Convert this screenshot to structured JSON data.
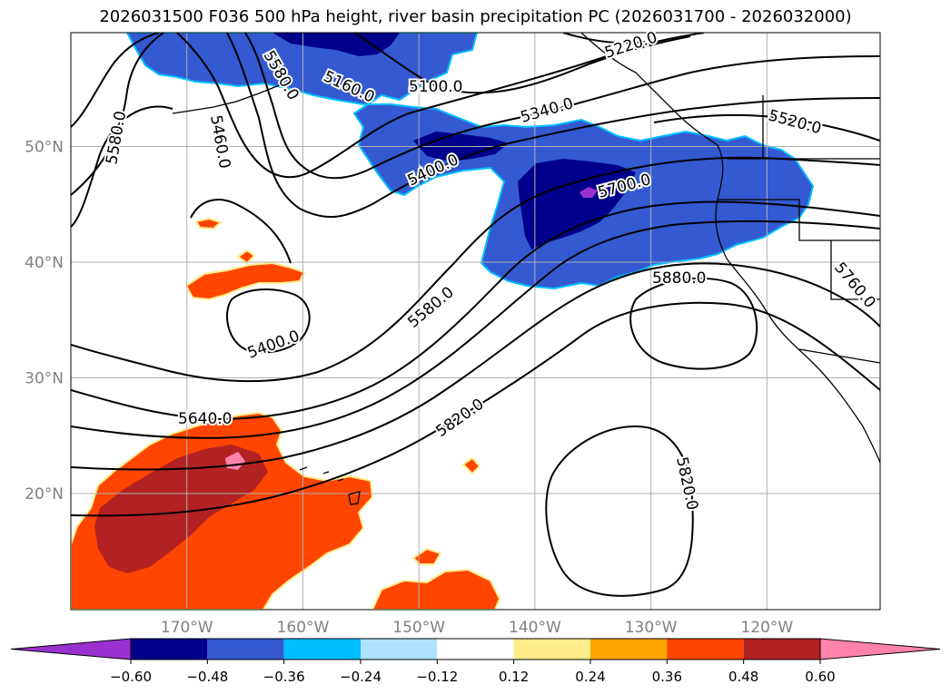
{
  "title": "2026031500 F036 500 hPa height, river basin precipitation PC (2026031700 - 2026032000)",
  "map": {
    "lat_labels": [
      {
        "lat": 50,
        "text": "50°N"
      },
      {
        "lat": 40,
        "text": "40°N"
      },
      {
        "lat": 30,
        "text": "30°N"
      },
      {
        "lat": 20,
        "text": "20°N"
      }
    ],
    "lon_labels": [
      {
        "lon": -170,
        "text": "170°W"
      },
      {
        "lon": -160,
        "text": "160°W"
      },
      {
        "lon": -150,
        "text": "150°W"
      },
      {
        "lon": -140,
        "text": "140°W"
      },
      {
        "lon": -130,
        "text": "130°W"
      },
      {
        "lon": -120,
        "text": "120°W"
      }
    ],
    "contour_labels": [
      "5580.0",
      "5460.0",
      "5160.0",
      "5100.0",
      "5220.0",
      "5340.0",
      "5520.0",
      "5400.0",
      "5700.0",
      "5760.0",
      "5880.0",
      "5580.0",
      "5400.0",
      "5640.0",
      "5820.0",
      "5820.0",
      "5580.0"
    ],
    "label_text_color": "#000000",
    "grid_color": "#b0b0b0",
    "axis_label_color": "#808080"
  },
  "colorbar": {
    "ticks": [
      "−0.60",
      "−0.48",
      "−0.36",
      "−0.24",
      "−0.12",
      "0.12",
      "0.24",
      "0.36",
      "0.48",
      "0.60"
    ],
    "colors": [
      "#9b30d0",
      "#00008b",
      "#3559d1",
      "#00bfff",
      "#b0e2ff",
      "#ffffff",
      "#ffec8b",
      "#ffa500",
      "#ff4500",
      "#b22222",
      "#ff82ab"
    ]
  }
}
